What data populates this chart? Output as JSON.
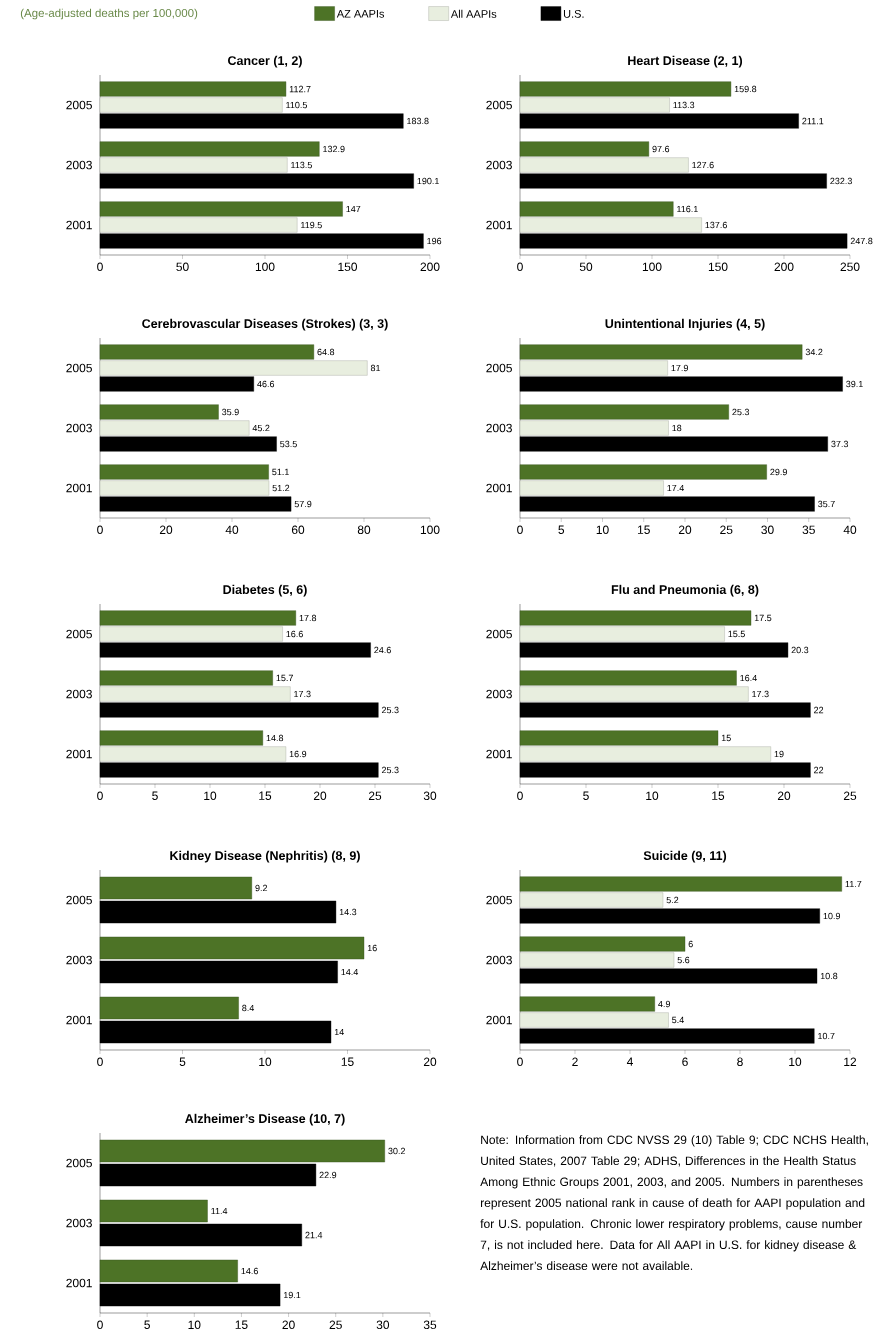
{
  "chart_data": [
    {
      "type": "bar",
      "orientation": "horizontal",
      "title": "Cancer (1, 2)",
      "subtitle": "(Age-adjusted deaths per 100,000)",
      "legend": "top",
      "data_labels": true,
      "categories": [
        "2005",
        "2003",
        "2001"
      ],
      "xlim": [
        0,
        200
      ],
      "xticks": [
        0,
        50,
        100,
        150,
        200
      ],
      "series": [
        {
          "name": "AZ AAPIs",
          "color": "#4d7326",
          "values": [
            112.7,
            132.9,
            147
          ]
        },
        {
          "name": "All AAPIs",
          "color": "#e8eedf",
          "values": [
            110.5,
            113.5,
            119.5
          ]
        },
        {
          "name": "U.S.",
          "color": "#000000",
          "values": [
            183.8,
            190.1,
            196
          ]
        }
      ]
    },
    {
      "type": "bar",
      "orientation": "horizontal",
      "title": "Heart Disease (2, 1)",
      "data_labels": true,
      "categories": [
        "2005",
        "2003",
        "2001"
      ],
      "xlim": [
        0,
        250
      ],
      "xticks": [
        0,
        50,
        100,
        150,
        200,
        250
      ],
      "series": [
        {
          "color": "#4d7326",
          "values": [
            159.8,
            97.6,
            116.1
          ]
        },
        {
          "color": "#e8eedf",
          "values": [
            113.3,
            127.6,
            137.6
          ]
        },
        {
          "color": "#000000",
          "values": [
            211.1,
            232.3,
            247.8
          ]
        }
      ]
    },
    {
      "type": "bar",
      "orientation": "horizontal",
      "title": "Cerebrovascular Diseases (Strokes) (3, 3)",
      "data_labels": true,
      "categories": [
        "2005",
        "2003",
        "2001"
      ],
      "xlim": [
        0,
        100
      ],
      "xticks": [
        0,
        20,
        40,
        60,
        80,
        100
      ],
      "series": [
        {
          "color": "#4d7326",
          "values": [
            64.8,
            35.9,
            51.1
          ]
        },
        {
          "color": "#e8eedf",
          "values": [
            81,
            45.2,
            51.2
          ]
        },
        {
          "color": "#000000",
          "values": [
            46.6,
            53.5,
            57.9
          ]
        }
      ]
    },
    {
      "type": "bar",
      "orientation": "horizontal",
      "title": "Unintentional Injuries (4, 5)",
      "data_labels": true,
      "categories": [
        "2005",
        "2003",
        "2001"
      ],
      "xlim": [
        0,
        40
      ],
      "xticks": [
        0,
        5,
        10,
        15,
        20,
        25,
        30,
        35,
        40
      ],
      "series": [
        {
          "color": "#4d7326",
          "values": [
            34.2,
            25.3,
            29.9
          ]
        },
        {
          "color": "#e8eedf",
          "values": [
            17.9,
            18,
            17.4
          ]
        },
        {
          "color": "#000000",
          "values": [
            39.1,
            37.3,
            35.7
          ]
        }
      ]
    },
    {
      "type": "bar",
      "orientation": "horizontal",
      "title": "Diabetes (5, 6)",
      "data_labels": true,
      "categories": [
        "2005",
        "2003",
        "2001"
      ],
      "xlim": [
        0,
        30
      ],
      "xticks": [
        0,
        5,
        10,
        15,
        20,
        25,
        30
      ],
      "series": [
        {
          "color": "#4d7326",
          "values": [
            17.8,
            15.7,
            14.8
          ]
        },
        {
          "color": "#e8eedf",
          "values": [
            16.6,
            17.3,
            16.9
          ]
        },
        {
          "color": "#000000",
          "values": [
            24.6,
            25.3,
            25.3
          ]
        }
      ]
    },
    {
      "type": "bar",
      "orientation": "horizontal",
      "title": "Flu and Pneumonia (6, 8)",
      "data_labels": true,
      "categories": [
        "2005",
        "2003",
        "2001"
      ],
      "xlim": [
        0,
        25
      ],
      "xticks": [
        0,
        5,
        10,
        15,
        20,
        25
      ],
      "series": [
        {
          "color": "#4d7326",
          "values": [
            17.5,
            16.4,
            15
          ]
        },
        {
          "color": "#e8eedf",
          "values": [
            15.5,
            17.3,
            19
          ]
        },
        {
          "color": "#000000",
          "values": [
            20.3,
            22,
            22
          ]
        }
      ]
    },
    {
      "type": "bar",
      "orientation": "horizontal",
      "title": "Kidney Disease (Nephritis) (8, 9)",
      "data_labels": true,
      "categories": [
        "2005",
        "2003",
        "2001"
      ],
      "xlim": [
        0,
        20
      ],
      "xticks": [
        0,
        5,
        10,
        15,
        20
      ],
      "series": [
        {
          "color": "#4d7326",
          "values": [
            9.2,
            16,
            8.4
          ]
        },
        {
          "color": "#000000",
          "values": [
            14.3,
            14.4,
            14
          ]
        }
      ]
    },
    {
      "type": "bar",
      "orientation": "horizontal",
      "title": "Suicide (9, 11)",
      "data_labels": true,
      "categories": [
        "2005",
        "2003",
        "2001"
      ],
      "xlim": [
        0,
        12
      ],
      "xticks": [
        0,
        2,
        4,
        6,
        8,
        10,
        12
      ],
      "series": [
        {
          "color": "#4d7326",
          "values": [
            11.7,
            6,
            4.9
          ]
        },
        {
          "color": "#e8eedf",
          "values": [
            5.2,
            5.6,
            5.4
          ]
        },
        {
          "color": "#000000",
          "values": [
            10.9,
            10.8,
            10.7
          ]
        }
      ]
    },
    {
      "type": "bar",
      "orientation": "horizontal",
      "title": "Alzheimer’s Disease (10, 7)",
      "data_labels": true,
      "categories": [
        "2005",
        "2003",
        "2001"
      ],
      "xlim": [
        0,
        35
      ],
      "xticks": [
        0,
        5,
        10,
        15,
        20,
        25,
        30,
        35
      ],
      "annotations": [
        "Note: Information from CDC NVSS 29 (10) Table 9; CDC NCHS Health, United States, 2007 Table 29; ADHS, Differences in the Health Status Among Ethnic Groups 2001, 2003, and 2005. Numbers in parentheses represent 2005 national rank in cause of death for AAPI population and for U.S. population. Chronic lower respiratory problems, cause number 7, is not included here. Data for All AAPI in U.S. for kidney disease & Alzheimer’s disease were not available."
      ],
      "series": [
        {
          "color": "#4d7326",
          "values": [
            30.2,
            11.4,
            14.6
          ]
        },
        {
          "color": "#000000",
          "values": [
            22.9,
            21.4,
            19.1
          ]
        }
      ]
    }
  ]
}
